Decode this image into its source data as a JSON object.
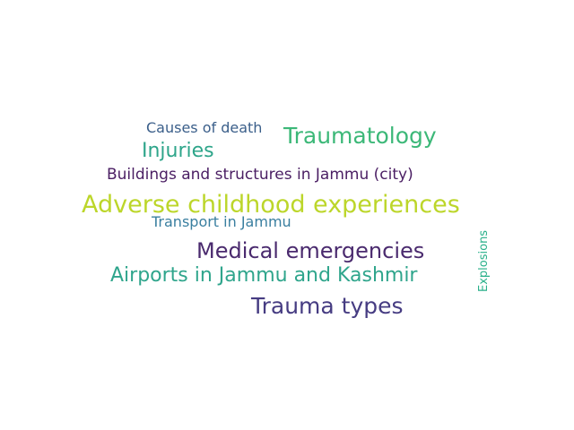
{
  "words": [
    {
      "text": "Causes of death",
      "color": "#3b5f8a"
    },
    {
      "text": "Traumatology",
      "color": "#3cb878"
    },
    {
      "text": "Injuries",
      "color": "#2ea58a"
    },
    {
      "text": "Buildings and structures in Jammu (city)",
      "color": "#4a1e63"
    },
    {
      "text": "Adverse childhood experiences",
      "color": "#bcd62a"
    },
    {
      "text": "Transport in Jammu",
      "color": "#3a7fa0"
    },
    {
      "text": "Medical emergencies",
      "color": "#4a2a6e"
    },
    {
      "text": "Airports in Jammu and Kashmir",
      "color": "#2fa58c"
    },
    {
      "text": "Trauma types",
      "color": "#463c82"
    },
    {
      "text": "Explosions",
      "color": "#29b08a"
    }
  ]
}
